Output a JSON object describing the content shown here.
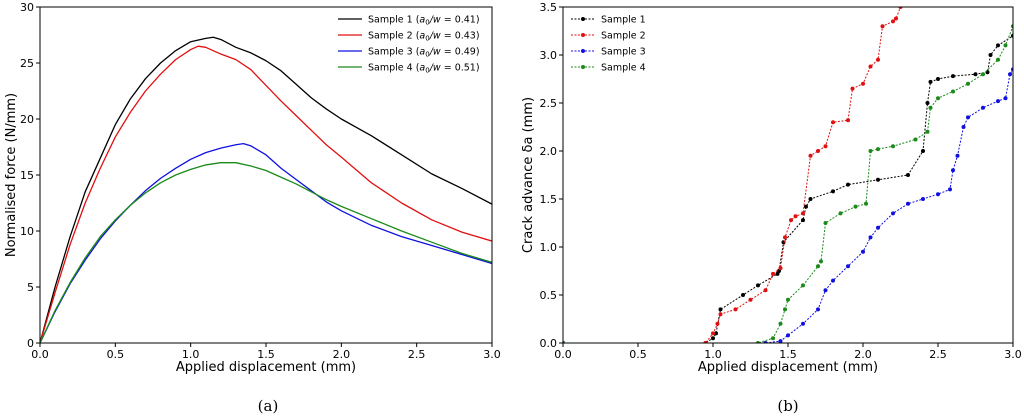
{
  "captions": [
    "(a)",
    "(b)"
  ],
  "chart_data": [
    {
      "type": "line",
      "xlabel": "Applied displacement (mm)",
      "ylabel": "Normalised force (N/mm)",
      "xlim": [
        0,
        3.0
      ],
      "ylim": [
        0,
        30
      ],
      "xticks": [
        "0.0",
        "0.5",
        "1.0",
        "1.5",
        "2.0",
        "2.5",
        "3.0"
      ],
      "yticks": [
        "0",
        "5",
        "10",
        "15",
        "20",
        "25",
        "30"
      ],
      "grid": false,
      "legend": "top-right",
      "series": [
        {
          "name": "Sample 1",
          "ratio": "0.41",
          "color": "#000000",
          "x": [
            0,
            0.1,
            0.2,
            0.3,
            0.4,
            0.5,
            0.6,
            0.7,
            0.8,
            0.9,
            1.0,
            1.1,
            1.15,
            1.2,
            1.3,
            1.4,
            1.5,
            1.6,
            1.7,
            1.8,
            1.9,
            2.0,
            2.2,
            2.4,
            2.6,
            2.8,
            3.0
          ],
          "y": [
            0,
            5,
            9.5,
            13.5,
            16.5,
            19.5,
            21.8,
            23.6,
            25.0,
            26.1,
            26.9,
            27.2,
            27.3,
            27.1,
            26.4,
            25.9,
            25.2,
            24.3,
            23.1,
            21.9,
            20.9,
            20.0,
            18.5,
            16.8,
            15.1,
            13.8,
            12.4
          ]
        },
        {
          "name": "Sample 2",
          "ratio": "0.43",
          "color": "#e01010",
          "x": [
            0,
            0.1,
            0.2,
            0.3,
            0.4,
            0.5,
            0.6,
            0.7,
            0.8,
            0.9,
            1.0,
            1.05,
            1.1,
            1.2,
            1.3,
            1.4,
            1.5,
            1.6,
            1.7,
            1.8,
            1.9,
            2.0,
            2.2,
            2.4,
            2.6,
            2.8,
            3.0
          ],
          "y": [
            0,
            4.5,
            8.8,
            12.5,
            15.6,
            18.4,
            20.6,
            22.5,
            24.0,
            25.3,
            26.2,
            26.5,
            26.4,
            25.8,
            25.3,
            24.4,
            23.0,
            21.6,
            20.3,
            19.0,
            17.7,
            16.6,
            14.3,
            12.5,
            11.0,
            9.9,
            9.1
          ]
        },
        {
          "name": "Sample 3",
          "ratio": "0.49",
          "color": "#1010e0",
          "x": [
            0,
            0.1,
            0.2,
            0.3,
            0.4,
            0.5,
            0.6,
            0.7,
            0.8,
            0.9,
            1.0,
            1.1,
            1.2,
            1.3,
            1.35,
            1.4,
            1.5,
            1.6,
            1.7,
            1.8,
            1.9,
            2.0,
            2.2,
            2.4,
            2.6,
            2.8,
            3.0
          ],
          "y": [
            0,
            2.8,
            5.3,
            7.4,
            9.3,
            10.9,
            12.3,
            13.6,
            14.7,
            15.6,
            16.4,
            17.0,
            17.4,
            17.7,
            17.8,
            17.6,
            16.8,
            15.6,
            14.6,
            13.6,
            12.6,
            11.8,
            10.5,
            9.5,
            8.7,
            7.9,
            7.1
          ]
        },
        {
          "name": "Sample 4",
          "ratio": "0.51",
          "color": "#1a8a1a",
          "x": [
            0,
            0.1,
            0.2,
            0.3,
            0.4,
            0.5,
            0.6,
            0.7,
            0.8,
            0.9,
            1.0,
            1.1,
            1.2,
            1.3,
            1.4,
            1.5,
            1.6,
            1.7,
            1.8,
            1.9,
            2.0,
            2.2,
            2.4,
            2.6,
            2.8,
            3.0
          ],
          "y": [
            0,
            2.9,
            5.4,
            7.6,
            9.5,
            11.0,
            12.3,
            13.4,
            14.3,
            15.0,
            15.5,
            15.9,
            16.1,
            16.1,
            15.8,
            15.4,
            14.8,
            14.2,
            13.5,
            12.8,
            12.2,
            11.1,
            10.0,
            9.0,
            8.0,
            7.2
          ]
        }
      ]
    },
    {
      "type": "line",
      "xlabel": "Applied displacement (mm)",
      "ylabel": "Crack advance δa (mm)",
      "xlim": [
        0,
        3.0
      ],
      "ylim": [
        0,
        3.5
      ],
      "xticks": [
        "0.0",
        "0.5",
        "1.0",
        "1.5",
        "2.0",
        "2.5",
        "3.0"
      ],
      "yticks": [
        "0.0",
        "0.5",
        "1.0",
        "1.5",
        "2.0",
        "2.5",
        "3.0",
        "3.5"
      ],
      "grid": false,
      "legend": "top-left",
      "series": [
        {
          "name": "Sample 1",
          "color": "#000000",
          "x": [
            0,
            0.95,
            1.0,
            1.02,
            1.05,
            1.2,
            1.3,
            1.43,
            1.44,
            1.47,
            1.6,
            1.62,
            1.65,
            1.8,
            1.9,
            2.1,
            2.3,
            2.4,
            2.43,
            2.45,
            2.5,
            2.6,
            2.75,
            2.83,
            2.85,
            2.9,
            3.0
          ],
          "y": [
            0,
            0,
            0.05,
            0.1,
            0.35,
            0.5,
            0.6,
            0.72,
            0.75,
            1.05,
            1.28,
            1.42,
            1.5,
            1.58,
            1.65,
            1.7,
            1.75,
            2.0,
            2.5,
            2.72,
            2.75,
            2.78,
            2.8,
            2.82,
            3.0,
            3.1,
            3.2
          ]
        },
        {
          "name": "Sample 2",
          "color": "#e01010",
          "x": [
            0,
            0.95,
            1.0,
            1.03,
            1.05,
            1.15,
            1.25,
            1.35,
            1.4,
            1.45,
            1.48,
            1.52,
            1.55,
            1.6,
            1.65,
            1.7,
            1.75,
            1.8,
            1.9,
            1.93,
            2.0,
            2.05,
            2.1,
            2.13,
            2.2,
            2.22,
            2.25
          ],
          "y": [
            0,
            0,
            0.1,
            0.2,
            0.3,
            0.35,
            0.45,
            0.55,
            0.72,
            0.78,
            1.1,
            1.28,
            1.32,
            1.35,
            1.95,
            2.0,
            2.05,
            2.3,
            2.32,
            2.65,
            2.7,
            2.88,
            2.95,
            3.3,
            3.35,
            3.38,
            3.5
          ]
        },
        {
          "name": "Sample 3",
          "color": "#1010e0",
          "x": [
            0,
            1.35,
            1.45,
            1.5,
            1.6,
            1.7,
            1.75,
            1.8,
            1.9,
            2.0,
            2.05,
            2.1,
            2.2,
            2.3,
            2.4,
            2.5,
            2.58,
            2.6,
            2.63,
            2.67,
            2.7,
            2.8,
            2.9,
            2.95,
            2.98,
            3.0
          ],
          "y": [
            0,
            0,
            0.02,
            0.08,
            0.2,
            0.35,
            0.55,
            0.65,
            0.8,
            0.95,
            1.1,
            1.2,
            1.35,
            1.45,
            1.5,
            1.55,
            1.6,
            1.8,
            1.95,
            2.25,
            2.35,
            2.45,
            2.52,
            2.55,
            2.8,
            2.85
          ]
        },
        {
          "name": "Sample 4",
          "color": "#1a8a1a",
          "x": [
            0,
            1.3,
            1.4,
            1.45,
            1.48,
            1.5,
            1.6,
            1.7,
            1.72,
            1.75,
            1.85,
            1.95,
            2.02,
            2.05,
            2.1,
            2.2,
            2.35,
            2.43,
            2.45,
            2.5,
            2.6,
            2.7,
            2.8,
            2.9,
            2.95,
            3.0
          ],
          "y": [
            0,
            0,
            0.05,
            0.2,
            0.35,
            0.45,
            0.6,
            0.8,
            0.85,
            1.25,
            1.35,
            1.42,
            1.45,
            2.0,
            2.02,
            2.05,
            2.12,
            2.2,
            2.45,
            2.55,
            2.62,
            2.7,
            2.8,
            2.95,
            3.1,
            3.3
          ]
        }
      ]
    }
  ]
}
